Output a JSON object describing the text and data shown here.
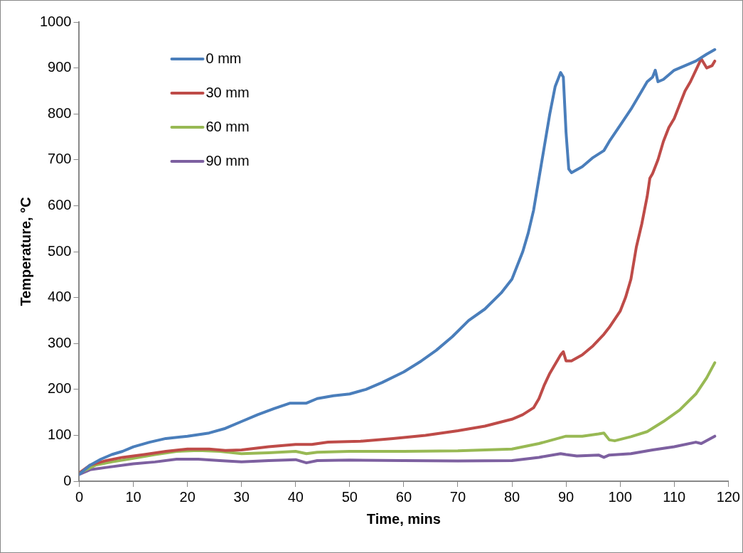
{
  "chart_data": {
    "type": "line",
    "xlabel": "Time, mins",
    "ylabel": "Temperature, °C",
    "xlim": [
      0,
      120
    ],
    "xticks": [
      0,
      10,
      20,
      30,
      40,
      50,
      60,
      70,
      80,
      90,
      100,
      110,
      120
    ],
    "ylim": [
      0,
      1000
    ],
    "yticks": [
      0,
      100,
      200,
      300,
      400,
      500,
      600,
      700,
      800,
      900,
      1000
    ],
    "grid": false,
    "legend": "top left",
    "marker": "none",
    "line_style": "solid",
    "series": [
      {
        "name": "0 mm",
        "color": "#4a7ebb",
        "x": [
          0,
          2,
          4,
          6,
          8,
          10,
          13,
          16,
          20,
          24,
          27,
          30,
          33,
          36,
          39,
          42,
          44,
          47,
          50,
          53,
          56,
          60,
          63,
          66,
          69,
          72,
          75,
          78,
          80,
          82,
          83,
          84,
          85,
          86,
          87,
          88,
          89,
          89.5,
          90,
          90.5,
          91,
          93,
          95,
          97,
          98,
          100,
          102,
          104,
          105,
          106,
          106.5,
          107,
          108,
          110,
          112,
          114,
          116,
          117.5
        ],
        "values": [
          15,
          35,
          48,
          58,
          65,
          75,
          85,
          93,
          98,
          105,
          115,
          130,
          145,
          158,
          170,
          170,
          180,
          186,
          190,
          200,
          215,
          238,
          260,
          285,
          315,
          350,
          375,
          410,
          440,
          500,
          540,
          590,
          660,
          730,
          800,
          860,
          890,
          880,
          760,
          680,
          672,
          685,
          705,
          720,
          740,
          775,
          810,
          850,
          870,
          880,
          895,
          870,
          875,
          895,
          905,
          915,
          930,
          940
        ]
      },
      {
        "name": "30 mm",
        "color": "#be4b48",
        "x": [
          0,
          2,
          5,
          8,
          12,
          16,
          20,
          24,
          27,
          30,
          35,
          40,
          43,
          46,
          52,
          58,
          64,
          70,
          75,
          80,
          82,
          84,
          85,
          86,
          87,
          88,
          89,
          89.5,
          90,
          91,
          93,
          95,
          97,
          98,
          100,
          101,
          102,
          103,
          104,
          105,
          105.5,
          106,
          107,
          108,
          109,
          110,
          111,
          112,
          113,
          114,
          115,
          116,
          117,
          117.5
        ],
        "values": [
          18,
          35,
          45,
          52,
          58,
          65,
          70,
          70,
          67,
          68,
          75,
          80,
          80,
          85,
          87,
          93,
          100,
          110,
          120,
          135,
          145,
          160,
          180,
          210,
          235,
          255,
          275,
          282,
          262,
          262,
          275,
          295,
          320,
          335,
          370,
          400,
          440,
          510,
          560,
          620,
          660,
          670,
          700,
          740,
          770,
          790,
          820,
          850,
          870,
          895,
          920,
          900,
          905,
          915
        ]
      },
      {
        "name": "60 mm",
        "color": "#98b954",
        "x": [
          0,
          3,
          6,
          10,
          14,
          18,
          22,
          26,
          30,
          35,
          40,
          42,
          44,
          50,
          60,
          70,
          80,
          85,
          90,
          93,
          96,
          97,
          98,
          99,
          102,
          105,
          108,
          111,
          114,
          116,
          117.5
        ],
        "values": [
          18,
          35,
          42,
          50,
          58,
          65,
          67,
          65,
          60,
          62,
          65,
          60,
          63,
          65,
          65,
          66,
          70,
          82,
          98,
          98,
          103,
          105,
          90,
          88,
          97,
          108,
          130,
          155,
          190,
          225,
          258
        ]
      },
      {
        "name": "90 mm",
        "color": "#7d60a0",
        "x": [
          0,
          2,
          5,
          10,
          14,
          18,
          22,
          26,
          30,
          35,
          40,
          42,
          44,
          50,
          60,
          70,
          80,
          85,
          89,
          90,
          92,
          96,
          97,
          98,
          102,
          106,
          110,
          114,
          115,
          117.5
        ],
        "values": [
          15,
          25,
          30,
          38,
          42,
          48,
          48,
          45,
          42,
          45,
          47,
          40,
          45,
          46,
          45,
          44,
          45,
          52,
          60,
          58,
          55,
          57,
          52,
          57,
          60,
          68,
          75,
          85,
          82,
          98
        ]
      }
    ]
  }
}
